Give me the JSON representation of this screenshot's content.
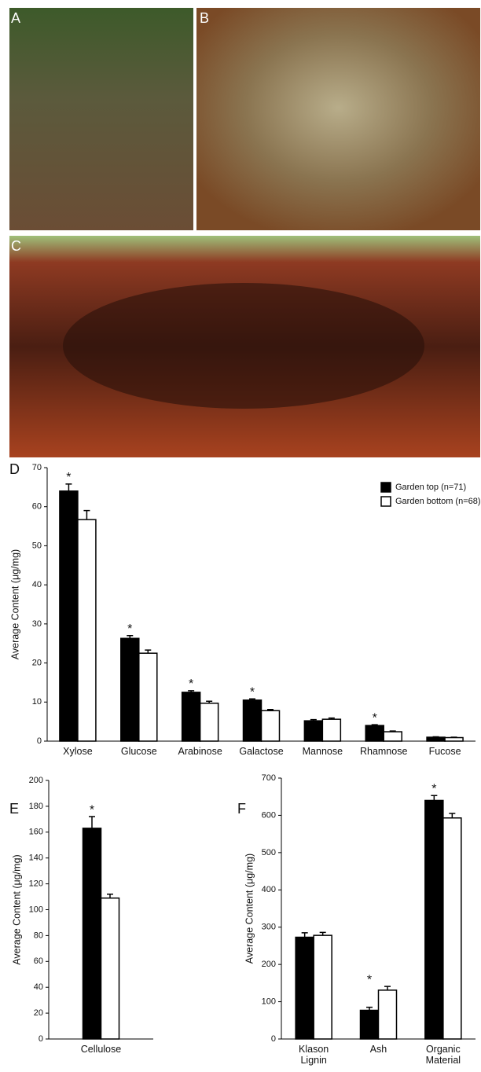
{
  "panel_labels": [
    "A",
    "B",
    "C",
    "D",
    "E",
    "F"
  ],
  "chart_data": [
    {
      "type": "bar",
      "ylabel": "Average Content (μg/mg)",
      "categories": [
        "Xylose",
        "Glucose",
        "Arabinose",
        "Galactose",
        "Mannose",
        "Rhamnose",
        "Fucose"
      ],
      "series": [
        {
          "name": "Garden top (n=71)",
          "color": "#000000",
          "values": [
            64,
            26.3,
            12.5,
            10.5,
            5.2,
            4,
            1
          ],
          "errors": [
            1.8,
            0.7,
            0.4,
            0.3,
            0.3,
            0.2,
            0.1
          ]
        },
        {
          "name": "Garden bottom (n=68)",
          "color": "#ffffff",
          "values": [
            56.7,
            22.5,
            9.7,
            7.8,
            5.6,
            2.4,
            0.9
          ],
          "errors": [
            2.3,
            0.8,
            0.5,
            0.3,
            0.3,
            0.2,
            0.1
          ]
        }
      ],
      "significance_marker": "*",
      "significant": [
        true,
        true,
        true,
        true,
        false,
        true,
        false
      ],
      "ylim": [
        0,
        70
      ],
      "yticks": [
        0,
        10,
        20,
        30,
        40,
        50,
        60,
        70
      ],
      "legend": "upper right"
    },
    {
      "type": "bar",
      "ylabel": "Average Content (μg/mg)",
      "categories": [
        "Cellulose"
      ],
      "series": [
        {
          "color": "#000000",
          "values": [
            163
          ],
          "errors": [
            9
          ]
        },
        {
          "color": "#ffffff",
          "values": [
            109
          ],
          "errors": [
            3
          ]
        }
      ],
      "significance_marker": "*",
      "significant": [
        true
      ],
      "ylim": [
        0,
        200
      ],
      "yticks": [
        0,
        20,
        40,
        60,
        80,
        100,
        120,
        140,
        160,
        180,
        200
      ]
    },
    {
      "type": "bar",
      "ylabel": "Average Content (μg/mg)",
      "categories": [
        "Klason Lignin",
        "Ash",
        "Organic Material"
      ],
      "series": [
        {
          "color": "#000000",
          "values": [
            273,
            77,
            640
          ],
          "errors": [
            12,
            8,
            13
          ]
        },
        {
          "color": "#ffffff",
          "values": [
            278,
            131,
            593
          ],
          "errors": [
            8,
            10,
            12
          ]
        }
      ],
      "significance_marker": "*",
      "significant": [
        false,
        true,
        true
      ],
      "ylim": [
        0,
        700
      ],
      "yticks": [
        0,
        100,
        200,
        300,
        400,
        500,
        600,
        700
      ]
    }
  ]
}
